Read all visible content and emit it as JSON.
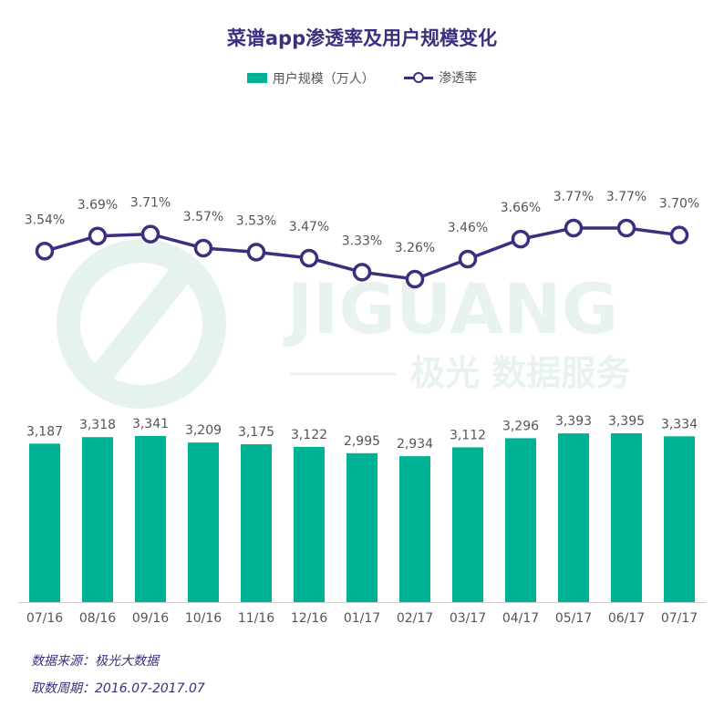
{
  "title": "菜谱app渗透率及用户规模变化",
  "legend": {
    "bar_label": "用户规模（万人）",
    "line_label": "渗透率"
  },
  "watermark": {
    "brand": "JIGUANG",
    "tagline": "极光 数据服务"
  },
  "notes": {
    "source": "数据来源：极光大数据",
    "period": "取数周期：2016.07-2017.07"
  },
  "colors": {
    "bar": "#00b294",
    "line": "#3d2f7e",
    "title": "#3d2f7e",
    "axis": "#cccccc",
    "watermark": "#e8f3ef"
  },
  "chart_data": {
    "type": "bar+line",
    "title": "菜谱app渗透率及用户规模变化",
    "categories": [
      "07/16",
      "08/16",
      "09/16",
      "10/16",
      "11/16",
      "12/16",
      "01/17",
      "02/17",
      "03/17",
      "04/17",
      "05/17",
      "06/17",
      "07/17"
    ],
    "series": [
      {
        "name": "用户规模（万人）",
        "type": "bar",
        "values": [
          3187,
          3318,
          3341,
          3209,
          3175,
          3122,
          2995,
          2934,
          3112,
          3296,
          3393,
          3395,
          3334
        ],
        "labels": [
          "3,187",
          "3,318",
          "3,341",
          "3,209",
          "3,175",
          "3,122",
          "2,995",
          "2,934",
          "3,112",
          "3,296",
          "3,393",
          "3,395",
          "3,334"
        ]
      },
      {
        "name": "渗透率",
        "type": "line",
        "values": [
          3.54,
          3.69,
          3.71,
          3.57,
          3.53,
          3.47,
          3.33,
          3.26,
          3.46,
          3.66,
          3.77,
          3.77,
          3.7
        ],
        "labels": [
          "3.54%",
          "3.69%",
          "3.71%",
          "3.57%",
          "3.53%",
          "3.47%",
          "3.33%",
          "3.26%",
          "3.46%",
          "3.66%",
          "3.77%",
          "3.77%",
          "3.70%"
        ]
      }
    ],
    "legend": "top-center",
    "grid": false
  }
}
